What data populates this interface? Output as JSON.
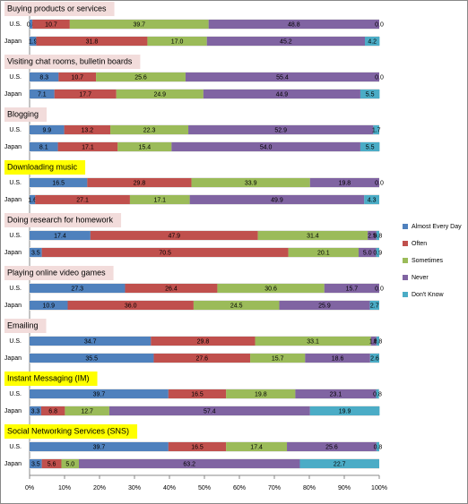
{
  "chart_data": {
    "type": "bar",
    "orientation": "horizontal",
    "stacked": true,
    "legend": "right",
    "xlim": [
      0,
      100
    ],
    "xticks": [
      {
        "value": 0,
        "label": "0%"
      },
      {
        "value": 10,
        "label": "10%"
      },
      {
        "value": 20,
        "label": "20%"
      },
      {
        "value": 30,
        "label": "30%"
      },
      {
        "value": 40,
        "label": "40%"
      },
      {
        "value": 50,
        "label": "50%"
      },
      {
        "value": 60,
        "label": "60%"
      },
      {
        "value": 70,
        "label": "70%"
      },
      {
        "value": 80,
        "label": "80%"
      },
      {
        "value": 90,
        "label": "90%"
      },
      {
        "value": 100,
        "label": "100%"
      }
    ],
    "series": [
      {
        "name": "Almost Every Day",
        "color": "#4f81bd"
      },
      {
        "name": "Often",
        "color": "#c0504d"
      },
      {
        "name": "Sometimes",
        "color": "#9bbb59"
      },
      {
        "name": "Never",
        "color": "#8064a2"
      },
      {
        "name": "Don't Know",
        "color": "#4bacc6"
      }
    ],
    "panels": [
      {
        "title": "Buying products or services",
        "title_color": "#f2dcdb",
        "categories": [
          "U.S.",
          "Japan"
        ],
        "values": [
          [
            0.8,
            10.7,
            39.7,
            48.8,
            0.0
          ],
          [
            1.9,
            31.8,
            17.0,
            45.2,
            4.2
          ]
        ],
        "value_labels": [
          [
            "0.8",
            "10.7",
            "39.7",
            "48.8",
            "0.0"
          ],
          [
            "1.9",
            "31.8",
            "17.0",
            "45.2",
            "4.2"
          ]
        ]
      },
      {
        "title": "Visiting chat rooms, bulletin boards",
        "title_color": "#f2dcdb",
        "categories": [
          "U.S.",
          "Japan"
        ],
        "values": [
          [
            8.3,
            10.7,
            25.6,
            55.4,
            0.0
          ],
          [
            7.1,
            17.7,
            24.9,
            44.9,
            5.5
          ]
        ],
        "value_labels": [
          [
            "8.3",
            "10.7",
            "25.6",
            "55.4",
            "0.0"
          ],
          [
            "7.1",
            "17.7",
            "24.9",
            "44.9",
            "5.5"
          ]
        ]
      },
      {
        "title": "Blogging",
        "title_color": "#f2dcdb",
        "categories": [
          "U.S.",
          "Japan"
        ],
        "values": [
          [
            9.9,
            13.2,
            22.3,
            52.9,
            1.7
          ],
          [
            8.1,
            17.1,
            15.4,
            54.0,
            5.5
          ]
        ],
        "value_labels": [
          [
            "9.9",
            "13.2",
            "22.3",
            "52.9",
            "1.7"
          ],
          [
            "8.1",
            "17.1",
            "15.4",
            "54.0",
            "5.5"
          ]
        ]
      },
      {
        "title": "Downloading music",
        "title_color": "#ffff00",
        "categories": [
          "U.S.",
          "Japan"
        ],
        "values": [
          [
            16.5,
            29.8,
            33.9,
            19.8,
            0.0
          ],
          [
            1.6,
            27.1,
            17.1,
            49.9,
            4.3
          ]
        ],
        "value_labels": [
          [
            "16.5",
            "29.8",
            "33.9",
            "19.8",
            "0.0"
          ],
          [
            "1.6",
            "27.1",
            "17.1",
            "49.9",
            "4.3"
          ]
        ]
      },
      {
        "title": "Doing research for homework",
        "title_color": "#f2dcdb",
        "categories": [
          "U.S.",
          "Japan"
        ],
        "values": [
          [
            17.4,
            47.9,
            31.4,
            2.5,
            0.8
          ],
          [
            3.5,
            70.5,
            20.1,
            5.0,
            0.9
          ]
        ],
        "value_labels": [
          [
            "17.4",
            "47.9",
            "31.4",
            "2.5",
            "0.8"
          ],
          [
            "3.5",
            "70.5",
            "20.1",
            "5.0",
            "0.9"
          ]
        ]
      },
      {
        "title": "Playing online video games",
        "title_color": "#f2dcdb",
        "categories": [
          "U.S.",
          "Japan"
        ],
        "values": [
          [
            27.3,
            26.4,
            30.6,
            15.7,
            0.0
          ],
          [
            10.9,
            36.0,
            24.5,
            25.9,
            2.7
          ]
        ],
        "value_labels": [
          [
            "27.3",
            "26.4",
            "30.6",
            "15.7",
            "0.0"
          ],
          [
            "10.9",
            "36.0",
            "24.5",
            "25.9",
            "2.7"
          ]
        ]
      },
      {
        "title": "Emailing",
        "title_color": "#f2dcdb",
        "categories": [
          "U.S.",
          "Japan"
        ],
        "values": [
          [
            34.7,
            29.8,
            33.1,
            1.6,
            0.8
          ],
          [
            35.5,
            27.6,
            15.7,
            18.6,
            2.6
          ]
        ],
        "value_labels": [
          [
            "34.7",
            "29.8",
            "33.1",
            "1.6",
            "0.8"
          ],
          [
            "35.5",
            "27.6",
            "15.7",
            "18.6",
            "2.6"
          ]
        ]
      },
      {
        "title": "Instant Messaging (IM)",
        "title_color": "#ffff00",
        "categories": [
          "U.S.",
          "Japan"
        ],
        "values": [
          [
            39.7,
            16.5,
            19.8,
            23.1,
            0.8
          ],
          [
            3.3,
            6.8,
            12.7,
            57.4,
            19.9
          ]
        ],
        "value_labels": [
          [
            "39.7",
            "16.5",
            "19.8",
            "23.1",
            "0.8"
          ],
          [
            "3.3",
            "6.8",
            "12.7",
            "57.4",
            "19.9"
          ]
        ]
      },
      {
        "title": "Social Networking Services (SNS)",
        "title_color": "#ffff00",
        "categories": [
          "U.S.",
          "Japan"
        ],
        "values": [
          [
            39.7,
            16.5,
            17.4,
            25.6,
            0.8
          ],
          [
            3.5,
            5.6,
            5.0,
            63.2,
            22.7
          ]
        ],
        "value_labels": [
          [
            "39.7",
            "16.5",
            "17.4",
            "25.6",
            "0.8"
          ],
          [
            "3.5",
            "5.6",
            "5.0",
            "63.2",
            "22.7"
          ]
        ]
      }
    ]
  }
}
